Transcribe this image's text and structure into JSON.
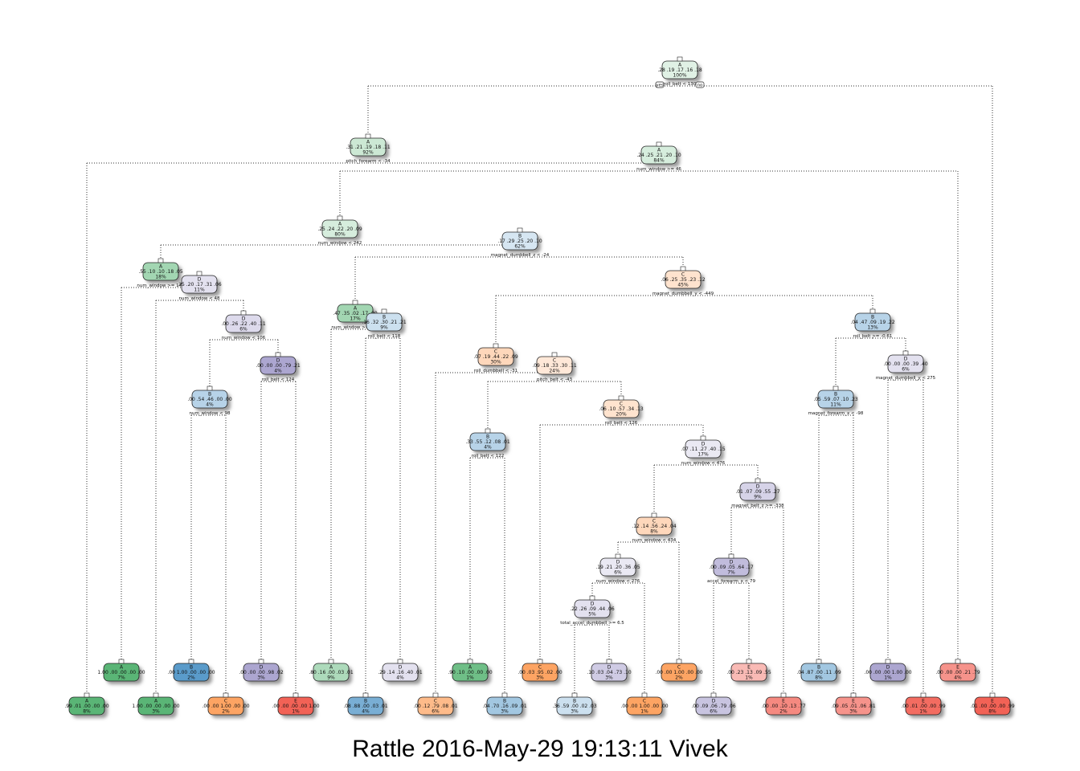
{
  "footer": "Rattle 2016-May-29 19:13:11 Vivek",
  "tree": {
    "colors": {
      "A": "#31a354",
      "B": "#3182bd",
      "C": "#fd8d3c",
      "D": "#756bb1",
      "E": "#ef3b2c"
    },
    "root_node_number": "1",
    "root_split_side_labels": [
      "yes",
      "no"
    ],
    "nodes": [
      {
        "id": "root",
        "cls": "A",
        "vals": ".28 .19 .17 .16 .18",
        "pct": "100%",
        "purity": 0.15,
        "split": "roll_belt < 130"
      },
      {
        "id": "n2",
        "cls": "A",
        "vals": ".31 .21 .19 .18 .11",
        "pct": "92%",
        "purity": 0.25,
        "split": "pitch_forearm < -34"
      },
      {
        "id": "n3",
        "cls": "A",
        "vals": ".24 .25 .21 .20 .10",
        "pct": "84%",
        "purity": 0.2,
        "split": "num_window >= 46"
      },
      {
        "id": "n4",
        "cls": "A",
        "vals": ".25 .24 .22 .20 .09",
        "pct": "80%",
        "purity": 0.2,
        "split": "num_window < 242"
      },
      {
        "id": "n5",
        "cls": "B",
        "vals": ".17 .29 .25 .20 .10",
        "pct": "62%",
        "purity": 0.2,
        "split": "magnet_dumbbell_z < -24"
      },
      {
        "id": "n6",
        "cls": "A",
        "vals": ".55 .10 .10 .18 .05",
        "pct": "18%",
        "purity": 0.45,
        "split": "num_window >= 174"
      },
      {
        "id": "n7",
        "cls": "D",
        "vals": ".25 .20 .17 .31 .06",
        "pct": "11%",
        "purity": 0.2,
        "split": "num_window < 48"
      },
      {
        "id": "n8",
        "cls": "C",
        "vals": ".06 .25 .35 .23 .12",
        "pct": "45%",
        "purity": 0.25,
        "split": "magnet_dumbbell_y < -449"
      },
      {
        "id": "n9",
        "cls": "D",
        "vals": ".00 .26 .22 .40 .11",
        "pct": "6%",
        "purity": 0.25,
        "split": "num_window < 106"
      },
      {
        "id": "n10",
        "cls": "A",
        "vals": ".47 .35 .02 .17 .00",
        "pct": "17%",
        "purity": 0.45,
        "split": "num_window >= 268"
      },
      {
        "id": "n11",
        "cls": "B",
        "vals": ".16 .32 .30 .21 .21",
        "pct": "9%",
        "purity": 0.25,
        "split": "roll_belt < 118"
      },
      {
        "id": "n12",
        "cls": "B",
        "vals": ".04 .47 .09 .19 .22",
        "pct": "13%",
        "purity": 0.35,
        "split": "roll_belt >= -0.61"
      },
      {
        "id": "n13",
        "cls": "C",
        "vals": ".07 .19 .44 .22 .09",
        "pct": "30%",
        "purity": 0.35,
        "split": "roll_dumbbell < -31"
      },
      {
        "id": "n14",
        "cls": "C",
        "vals": ".09 .18 .33 .30 .11",
        "pct": "24%",
        "purity": 0.2,
        "split": "pitch_belt < -43"
      },
      {
        "id": "n15",
        "cls": "D",
        "vals": ".00 .00 .00 .79 .21",
        "pct": "4%",
        "purity": 0.6,
        "split": "roll_belt < 124"
      },
      {
        "id": "n16",
        "cls": "D",
        "vals": ".00 .00 .00 .39 .40",
        "pct": "6%",
        "purity": 0.2,
        "split": "magnet_dumbbell_y < 275"
      },
      {
        "id": "n17",
        "cls": "B",
        "vals": ".00 .54 .46 .00 .00",
        "pct": "4%",
        "purity": 0.35,
        "split": "num_window < 98"
      },
      {
        "id": "n18",
        "cls": "C",
        "vals": ".06 .10 .57 .34 .13",
        "pct": "20%",
        "purity": 0.25,
        "split": "roll_belt < 126"
      },
      {
        "id": "n19",
        "cls": "B",
        "vals": ".05 .59 .07 .10 .23",
        "pct": "11%",
        "purity": 0.35,
        "split": "magnet_forearm_x < -98"
      },
      {
        "id": "n20",
        "cls": "B",
        "vals": ".33 .55 .12 .08 .01",
        "pct": "4%",
        "purity": 0.35,
        "split": "roll_belt < 122"
      },
      {
        "id": "n21",
        "cls": "D",
        "vals": ".07 .11 .27 .40 .15",
        "pct": "17%",
        "purity": 0.15,
        "split": "num_window < 476"
      },
      {
        "id": "n22",
        "cls": "D",
        "vals": ".01 .07 .09 .55 .27",
        "pct": "9%",
        "purity": 0.3,
        "split": "magnet_belt_z >= -338"
      },
      {
        "id": "n23",
        "cls": "C",
        "vals": ".12 .14 .56 .24 .04",
        "pct": "8%",
        "purity": 0.35,
        "split": "num_window < 434"
      },
      {
        "id": "n24",
        "cls": "D",
        "vals": ".00 .09 .05 .64 .17",
        "pct": "7%",
        "purity": 0.45,
        "split": "accel_forearm_x < 79"
      },
      {
        "id": "n25",
        "cls": "D",
        "vals": ".19 .21 .20 .36 .05",
        "pct": "6%",
        "purity": 0.15,
        "split": "num_window < 276"
      },
      {
        "id": "n26",
        "cls": "D",
        "vals": ".22 .26 .09 .44 .06",
        "pct": "5%",
        "purity": 0.2,
        "split": "total_accel_dumbbell >= 6.5"
      },
      {
        "id": "l1",
        "cls": "A",
        "vals": ".99 .01 .00 .00 .00",
        "pct": "8%",
        "purity": 0.8
      },
      {
        "id": "l2",
        "cls": "A",
        "vals": "1.00 .00 .00 .00 .00",
        "pct": "7%",
        "purity": 0.8
      },
      {
        "id": "l3",
        "cls": "A",
        "vals": "1.00 .00 .00 .00 .00",
        "pct": "3%",
        "purity": 0.8
      },
      {
        "id": "l4",
        "cls": "B",
        "vals": ".00 1.00 .00 .00 .00",
        "pct": "2%",
        "purity": 0.8
      },
      {
        "id": "l5",
        "cls": "C",
        "vals": ".00 .00 1.00 .00 .00",
        "pct": "2%",
        "purity": 0.8
      },
      {
        "id": "l6",
        "cls": "D",
        "vals": ".00 .00 .00 .98 .02",
        "pct": "3%",
        "purity": 0.6
      },
      {
        "id": "l7",
        "cls": "E",
        "vals": ".00 .00 .00 .00 1.00",
        "pct": "1%",
        "purity": 0.8
      },
      {
        "id": "l8",
        "cls": "A",
        "vals": ".80 .16 .00 .03 .01",
        "pct": "9%",
        "purity": 0.4
      },
      {
        "id": "l9",
        "cls": "B",
        "vals": ".08 .88 .00 .03 .01",
        "pct": "4%",
        "purity": 0.65
      },
      {
        "id": "l10",
        "cls": "D",
        "vals": ".29 .14 .16 .40 .01",
        "pct": "4%",
        "purity": 0.2
      },
      {
        "id": "l11",
        "cls": "C",
        "vals": ".00 .12 .79 .08 .01",
        "pct": "6%",
        "purity": 0.6
      },
      {
        "id": "l12",
        "cls": "A",
        "vals": ".90 .10 .00 .00 .00",
        "pct": "1%",
        "purity": 0.7
      },
      {
        "id": "l13",
        "cls": "B",
        "vals": ".04 .70 .16 .09 .01",
        "pct": "3%",
        "purity": 0.45
      },
      {
        "id": "l14",
        "cls": "C",
        "vals": ".00 .03 .95 .02 .00",
        "pct": "3%",
        "purity": 0.8
      },
      {
        "id": "l15",
        "cls": "B",
        "vals": ".36 .59 .00 .02 .03",
        "pct": "3%",
        "purity": 0.25
      },
      {
        "id": "l16",
        "cls": "D",
        "vals": ".10 .03 .04 .73 .10",
        "pct": "3%",
        "purity": 0.35
      },
      {
        "id": "l17",
        "cls": "C",
        "vals": ".00 .00 1.00 .00 .00",
        "pct": "1%",
        "purity": 0.8
      },
      {
        "id": "l18",
        "cls": "C",
        "vals": ".00 .00 1.00 .00 .00",
        "pct": "2%",
        "purity": 0.8
      },
      {
        "id": "l19",
        "cls": "D",
        "vals": ".00 .09 .06 .79 .06",
        "pct": "6%",
        "purity": 0.4
      },
      {
        "id": "l20",
        "cls": "E",
        "vals": ".00 .23 .13 .09 .55",
        "pct": "1%",
        "purity": 0.35
      },
      {
        "id": "l21",
        "cls": "E",
        "vals": ".00 .00 .10 .13 .77",
        "pct": "2%",
        "purity": 0.6
      },
      {
        "id": "l22",
        "cls": "B",
        "vals": ".04 .87 .00 .11 .09",
        "pct": "8%",
        "purity": 0.45
      },
      {
        "id": "l23",
        "cls": "E",
        "vals": ".09 .05 .01 .06 .81",
        "pct": "3%",
        "purity": 0.55
      },
      {
        "id": "l24",
        "cls": "D",
        "vals": ".00 .00 .00 1.00 .00",
        "pct": "1%",
        "purity": 0.6
      },
      {
        "id": "l25",
        "cls": "E",
        "vals": ".00 .01 .00 .00 .99",
        "pct": "1%",
        "purity": 0.75
      },
      {
        "id": "l26",
        "cls": "E",
        "vals": ".00 .00 .00 .21 .79",
        "pct": "4%",
        "purity": 0.55
      },
      {
        "id": "l27",
        "cls": "E",
        "vals": ".01 .00 .00 .00 .99",
        "pct": "8%",
        "purity": 0.8
      }
    ],
    "edges": [
      [
        "root",
        "n2"
      ],
      [
        "root",
        "n3"
      ],
      [
        "n2",
        "l1"
      ],
      [
        "n2",
        "n3"
      ],
      [
        "n3",
        "n4"
      ],
      [
        "n3",
        "n26x"
      ]
    ]
  }
}
